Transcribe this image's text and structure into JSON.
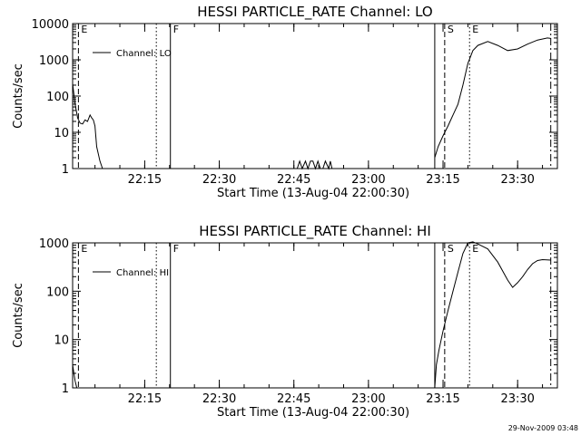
{
  "footer": {
    "timestamp": "29-Nov-2009 03:48"
  },
  "chart_data": [
    {
      "type": "line",
      "title": "HESSI PARTICLE_RATE Channel: LO",
      "xlabel": "Start Time (13-Aug-04 22:00:30)",
      "ylabel": "Counts/sec",
      "legend": {
        "label": "Channel: LO",
        "position": "top-left"
      },
      "yscale": "log",
      "ylim": [
        1,
        10000
      ],
      "yticks": [
        1,
        10,
        100,
        1000,
        10000
      ],
      "ytick_labels": [
        "1",
        "10",
        "100",
        "1000",
        "10000"
      ],
      "xlim": [
        "22:00:30",
        "23:38:00"
      ],
      "xticks": [
        "22:15",
        "22:30",
        "22:45",
        "23:00",
        "23:15",
        "23:30"
      ],
      "markers": [
        {
          "label": "E",
          "time": "22:01:40",
          "style": "dashed"
        },
        {
          "label": "",
          "time": "22:17:20",
          "style": "dotted"
        },
        {
          "label": "F",
          "time": "22:20:10",
          "style": "solid"
        },
        {
          "label": "",
          "time": "23:13:20",
          "style": "solid"
        },
        {
          "label": "S",
          "time": "23:15:20",
          "style": "dashed"
        },
        {
          "label": "E",
          "time": "23:20:20",
          "style": "dotted"
        },
        {
          "label": "",
          "time": "23:36:40",
          "style": "dashdot"
        }
      ],
      "series": [
        {
          "name": "Channel: LO",
          "segments": [
            {
              "x": [
                "22:00:30",
                "22:01:00",
                "22:01:30",
                "22:02:00",
                "22:02:30",
                "22:03:00",
                "22:03:30",
                "22:04:00",
                "22:04:20",
                "22:04:40",
                "22:05:00",
                "22:05:20",
                "22:06:00",
                "22:06:30"
              ],
              "y": [
                220,
                60,
                25,
                18,
                17,
                22,
                20,
                30,
                25,
                22,
                15,
                4,
                1.6,
                1
              ]
            },
            {
              "x": [
                "22:45:40",
                "22:46:10",
                "22:46:40",
                "22:47:20",
                "22:47:50",
                "22:48:20",
                "22:48:50",
                "22:49:20",
                "22:49:50",
                "22:50:20",
                "22:50:50",
                "22:51:20",
                "22:52:00",
                "22:52:20",
                "22:52:40"
              ],
              "y": [
                1,
                1.6,
                1,
                1.6,
                1,
                1.6,
                1.6,
                1,
                1.6,
                1,
                1,
                1.6,
                1,
                1.6,
                1
              ]
            },
            {
              "x": [
                "23:13:20",
                "23:14:00",
                "23:15:00",
                "23:16:00",
                "23:17:00",
                "23:18:00",
                "23:19:00",
                "23:20:00",
                "23:21:00",
                "23:22:00",
                "23:24:00",
                "23:26:00",
                "23:28:00",
                "23:30:00",
                "23:32:00",
                "23:34:00",
                "23:36:00",
                "23:36:40"
              ],
              "y": [
                2,
                4,
                8,
                15,
                30,
                60,
                200,
                800,
                1800,
                2500,
                3200,
                2500,
                1800,
                2000,
                2700,
                3500,
                4000,
                3900
              ]
            }
          ]
        }
      ]
    },
    {
      "type": "line",
      "title": "HESSI PARTICLE_RATE Channel: HI",
      "xlabel": "Start Time (13-Aug-04 22:00:30)",
      "ylabel": "Counts/sec",
      "legend": {
        "label": "Channel: HI",
        "position": "top-left"
      },
      "yscale": "log",
      "ylim": [
        1,
        1000
      ],
      "yticks": [
        1,
        10,
        100,
        1000
      ],
      "ytick_labels": [
        "1",
        "10",
        "100",
        "1000"
      ],
      "xlim": [
        "22:00:30",
        "23:38:00"
      ],
      "xticks": [
        "22:15",
        "22:30",
        "22:45",
        "23:00",
        "23:15",
        "23:30"
      ],
      "markers": [
        {
          "label": "E",
          "time": "22:01:40",
          "style": "dashed"
        },
        {
          "label": "",
          "time": "22:17:20",
          "style": "dotted"
        },
        {
          "label": "F",
          "time": "22:20:10",
          "style": "solid"
        },
        {
          "label": "",
          "time": "23:13:20",
          "style": "solid"
        },
        {
          "label": "S",
          "time": "23:15:20",
          "style": "dashed"
        },
        {
          "label": "E",
          "time": "23:20:20",
          "style": "dotted"
        },
        {
          "label": "",
          "time": "23:36:40",
          "style": "dashdot"
        }
      ],
      "series": [
        {
          "name": "Channel: HI",
          "segments": [
            {
              "x": [
                "22:00:30",
                "22:00:45",
                "22:01:00",
                "22:01:20"
              ],
              "y": [
                3,
                2,
                1.4,
                1
              ]
            },
            {
              "x": [
                "23:13:20",
                "23:13:40",
                "23:14:10",
                "23:15:00",
                "23:16:00",
                "23:17:00",
                "23:18:00",
                "23:19:00",
                "23:20:00",
                "23:21:00",
                "23:22:00",
                "23:24:00",
                "23:26:00",
                "23:28:00",
                "23:29:00",
                "23:30:00",
                "23:31:00",
                "23:32:00",
                "23:33:00",
                "23:34:00",
                "23:35:00",
                "23:36:40"
              ],
              "y": [
                1,
                3,
                6,
                15,
                40,
                100,
                250,
                600,
                1000,
                1050,
                950,
                750,
                400,
                170,
                120,
                150,
                200,
                280,
                370,
                430,
                450,
                440
              ]
            }
          ]
        }
      ]
    }
  ]
}
